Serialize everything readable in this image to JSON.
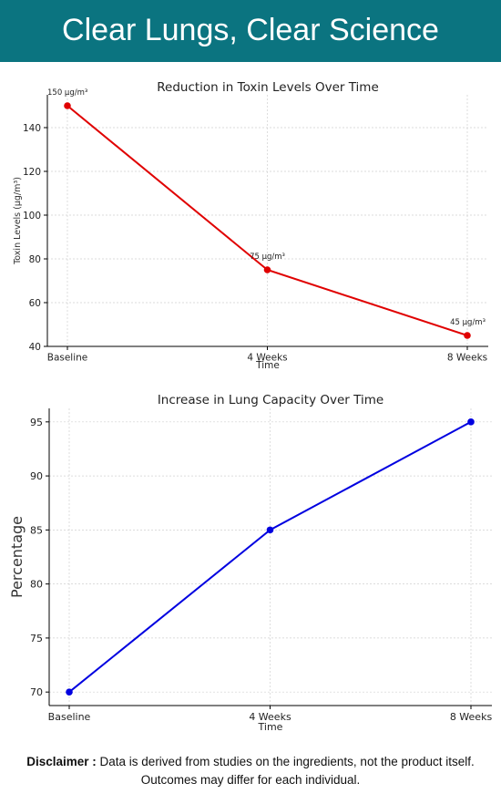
{
  "header": {
    "title": "Clear Lungs, Clear Science"
  },
  "chart_data": [
    {
      "type": "line",
      "title": "Reduction in Toxin Levels Over Time",
      "xlabel": "Time",
      "ylabel": "Toxin Levels (µg/m³)",
      "categories": [
        "Baseline",
        "4 Weeks",
        "8 Weeks"
      ],
      "series": [
        {
          "values": [
            150,
            75,
            45
          ],
          "color": "#e00000"
        }
      ],
      "data_labels": [
        "150 µg/m³",
        "75 µg/m³",
        "45 µg/m³"
      ],
      "ylim": [
        40,
        155
      ],
      "yticks": [
        40,
        60,
        80,
        100,
        120,
        140
      ],
      "grid": true
    },
    {
      "type": "line",
      "title": "Increase in Lung Capacity Over Time",
      "xlabel": "Time",
      "ylabel": "Percentage",
      "categories": [
        "Baseline",
        "4 Weeks",
        "8 Weeks"
      ],
      "series": [
        {
          "values": [
            70,
            85,
            95
          ],
          "color": "#0000e0"
        }
      ],
      "ylim": [
        68.75,
        96.25
      ],
      "yticks": [
        70,
        75,
        80,
        85,
        90,
        95
      ],
      "grid": true
    }
  ],
  "footer": {
    "disclaimer_label": "Disclaimer :",
    "disclaimer_line1": "Data is derived from studies on the ingredients, not the product itself.",
    "disclaimer_line2": "Outcomes may differ for each individual."
  }
}
